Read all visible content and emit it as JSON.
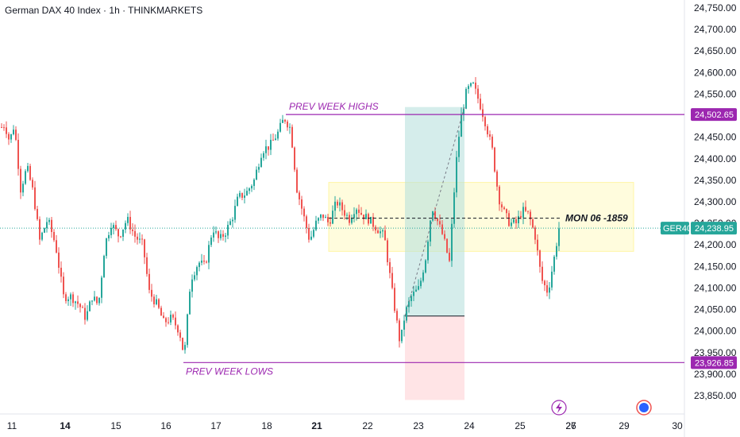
{
  "header": {
    "title": "German DAX 40 Index · 1h · THINKMARKETS"
  },
  "colors": {
    "up": "#26a69a",
    "down": "#ef5350",
    "level": "#9c27b0",
    "zone": "#fff59d",
    "tp_zone": "#b2dfdb",
    "sl_zone": "#ffcdd2",
    "price_tag": "#26a69a"
  },
  "chart_data": {
    "type": "candlestick",
    "symbol": "GER40",
    "ylim": [
      23810,
      24770
    ],
    "y_ticks": [
      "24,750.00",
      "24,700.00",
      "24,650.00",
      "24,600.00",
      "24,550.00",
      "24,500.00",
      "24,450.00",
      "24,400.00",
      "24,350.00",
      "24,300.00",
      "24,250.00",
      "24,200.00",
      "24,150.00",
      "24,100.00",
      "24,050.00",
      "24,000.00",
      "23,950.00",
      "23,900.00",
      "23,850.00"
    ],
    "x_ticks": [
      {
        "label": "11",
        "bold": false
      },
      {
        "label": "14",
        "bold": true
      },
      {
        "label": "15",
        "bold": false
      },
      {
        "label": "16",
        "bold": false
      },
      {
        "label": "17",
        "bold": false
      },
      {
        "label": "18",
        "bold": false
      },
      {
        "label": "21",
        "bold": true
      },
      {
        "label": "22",
        "bold": false
      },
      {
        "label": "23",
        "bold": false
      },
      {
        "label": "24",
        "bold": false
      },
      {
        "label": "25",
        "bold": false
      },
      {
        "label": "26",
        "bold": false
      },
      {
        "label": "27",
        "bold": false
      },
      {
        "label": "29",
        "bold": false
      },
      {
        "label": "30",
        "bold": false
      }
    ],
    "path": [
      [
        0,
        24470
      ],
      [
        6,
        24480
      ],
      [
        12,
        24440
      ],
      [
        18,
        24480
      ],
      [
        26,
        24330
      ],
      [
        34,
        24380
      ],
      [
        42,
        24320
      ],
      [
        50,
        24210
      ],
      [
        60,
        24260
      ],
      [
        70,
        24200
      ],
      [
        80,
        24080
      ],
      [
        90,
        24080
      ],
      [
        100,
        24060
      ],
      [
        108,
        24030
      ],
      [
        116,
        24080
      ],
      [
        124,
        24060
      ],
      [
        132,
        24200
      ],
      [
        140,
        24250
      ],
      [
        150,
        24220
      ],
      [
        160,
        24260
      ],
      [
        170,
        24220
      ],
      [
        180,
        24200
      ],
      [
        188,
        24090
      ],
      [
        198,
        24060
      ],
      [
        206,
        24020
      ],
      [
        216,
        24030
      ],
      [
        226,
        24000
      ],
      [
        232,
        23940
      ],
      [
        240,
        24120
      ],
      [
        250,
        24160
      ],
      [
        258,
        24150
      ],
      [
        268,
        24240
      ],
      [
        276,
        24210
      ],
      [
        284,
        24230
      ],
      [
        292,
        24260
      ],
      [
        300,
        24310
      ],
      [
        310,
        24320
      ],
      [
        320,
        24350
      ],
      [
        330,
        24420
      ],
      [
        340,
        24430
      ],
      [
        350,
        24460
      ],
      [
        358,
        24495
      ],
      [
        366,
        24470
      ],
      [
        374,
        24330
      ],
      [
        382,
        24270
      ],
      [
        390,
        24210
      ],
      [
        398,
        24250
      ],
      [
        406,
        24270
      ],
      [
        414,
        24250
      ],
      [
        424,
        24300
      ],
      [
        432,
        24280
      ],
      [
        440,
        24260
      ],
      [
        448,
        24290
      ],
      [
        456,
        24270
      ],
      [
        464,
        24260
      ],
      [
        474,
        24240
      ],
      [
        484,
        24220
      ],
      [
        494,
        24090
      ],
      [
        504,
        23970
      ],
      [
        510,
        24040
      ],
      [
        518,
        24080
      ],
      [
        528,
        24100
      ],
      [
        536,
        24170
      ],
      [
        544,
        24290
      ],
      [
        550,
        24260
      ],
      [
        558,
        24220
      ],
      [
        566,
        24160
      ],
      [
        574,
        24380
      ],
      [
        580,
        24490
      ],
      [
        588,
        24560
      ],
      [
        596,
        24570
      ],
      [
        604,
        24530
      ],
      [
        612,
        24480
      ],
      [
        620,
        24420
      ],
      [
        628,
        24310
      ],
      [
        636,
        24270
      ],
      [
        642,
        24250
      ],
      [
        650,
        24250
      ],
      [
        658,
        24280
      ],
      [
        666,
        24270
      ],
      [
        674,
        24220
      ],
      [
        682,
        24120
      ],
      [
        690,
        24090
      ],
      [
        698,
        24170
      ],
      [
        704,
        24239
      ]
    ],
    "current_price": "24,238.95",
    "levels": [
      {
        "label": "PREV WEEK HIGHS",
        "value": 24502.65,
        "tag": "24,502.65"
      },
      {
        "label": "PREV WEEK LOWS",
        "value": 23926.85,
        "tag": "23,926.85"
      }
    ],
    "zones": {
      "yellow": [
        24185,
        24345
      ],
      "take_profit": [
        24035,
        24520
      ],
      "stop_loss": [
        23840,
        24035
      ]
    },
    "annotation_line": {
      "label": "MON 06 -1859",
      "value": 24262
    }
  }
}
